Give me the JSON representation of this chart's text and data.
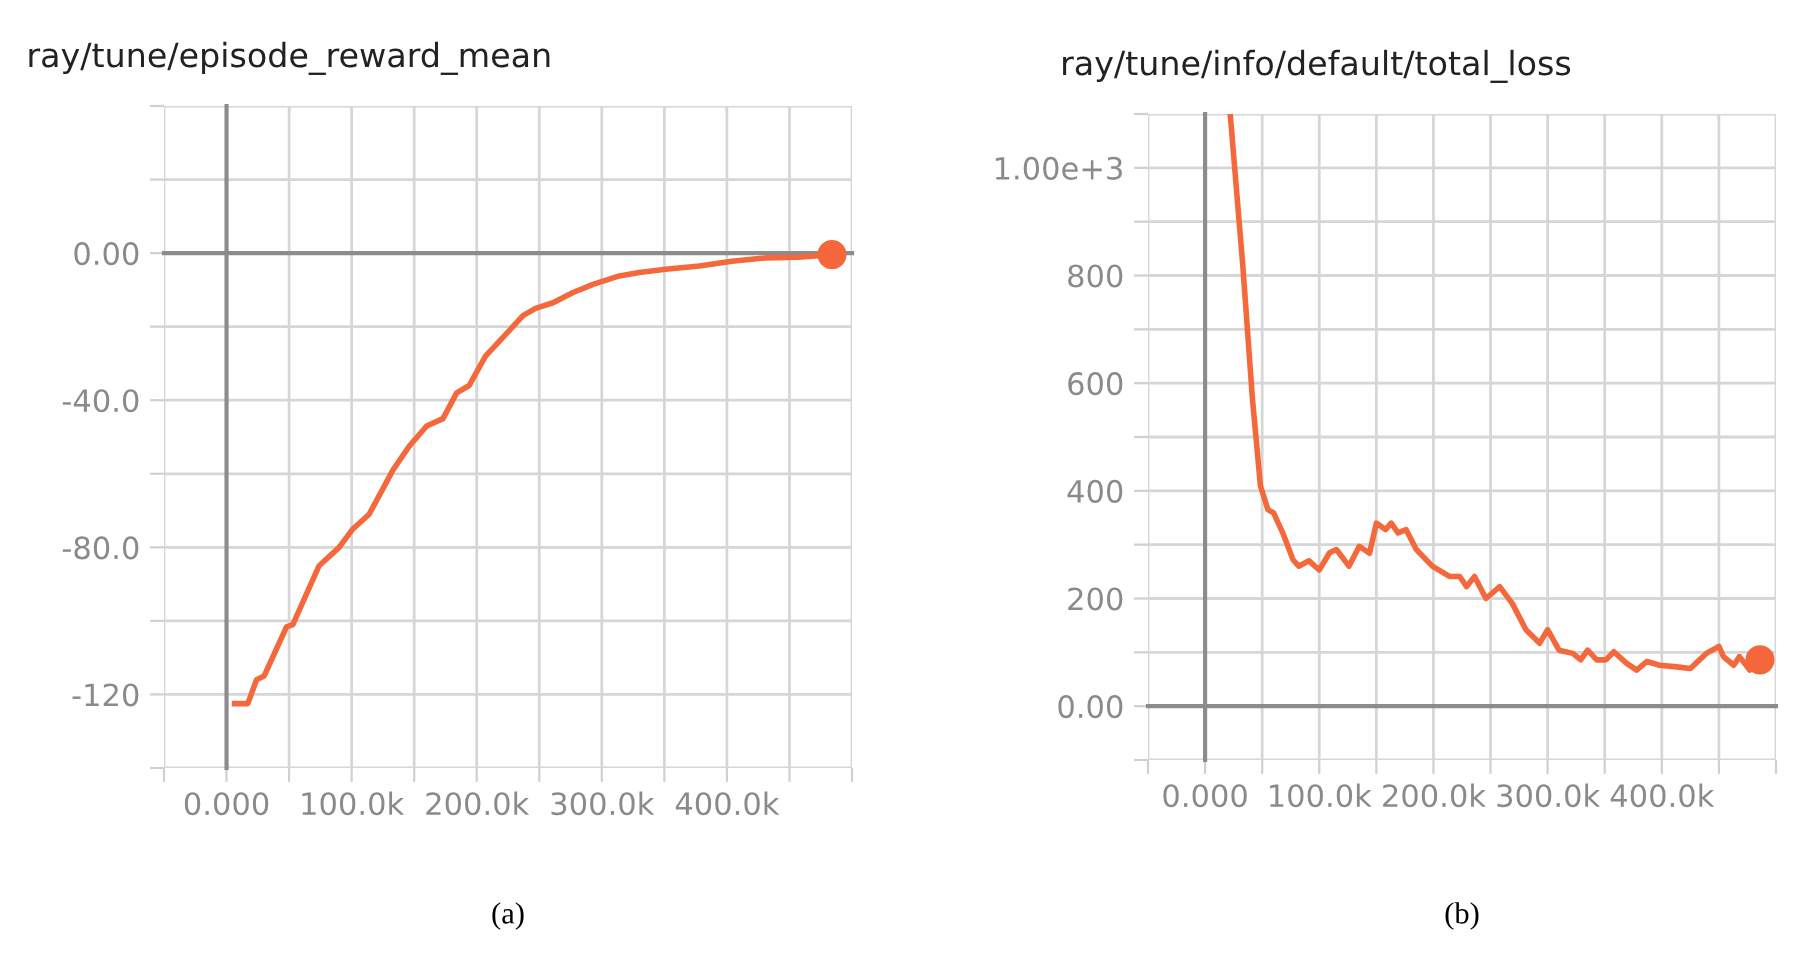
{
  "chart_data": [
    {
      "type": "line",
      "title": "ray/tune/episode_reward_mean",
      "annotations": [
        "(a)"
      ],
      "grid": true,
      "marker": "none",
      "line_style": "solid",
      "xlim": [
        -50000,
        500000
      ],
      "ylim": [
        -140,
        40
      ],
      "xticks": [
        {
          "value": -50000,
          "label": null
        },
        {
          "value": 0,
          "label": "0.000"
        },
        {
          "value": 50000,
          "label": null
        },
        {
          "value": 100000,
          "label": "100.0k"
        },
        {
          "value": 150000,
          "label": null
        },
        {
          "value": 200000,
          "label": "200.0k"
        },
        {
          "value": 250000,
          "label": null
        },
        {
          "value": 300000,
          "label": "300.0k"
        },
        {
          "value": 350000,
          "label": null
        },
        {
          "value": 400000,
          "label": "400.0k"
        },
        {
          "value": 450000,
          "label": null
        },
        {
          "value": 500000,
          "label": null
        }
      ],
      "yticks": [
        {
          "value": -140,
          "label": null
        },
        {
          "value": -120,
          "label": "-120"
        },
        {
          "value": -100,
          "label": null
        },
        {
          "value": -80,
          "label": "-80.0"
        },
        {
          "value": -60,
          "label": null
        },
        {
          "value": -40,
          "label": "-40.0"
        },
        {
          "value": -20,
          "label": null
        },
        {
          "value": 0,
          "label": "0.00"
        },
        {
          "value": 20,
          "label": null
        },
        {
          "value": 40,
          "label": null
        }
      ],
      "series": [
        {
          "color": "#f4683c",
          "x": [
            6400,
            17000,
            24000,
            30000,
            48000,
            53000,
            74000,
            90000,
            101000,
            114000,
            133000,
            146000,
            160000,
            173000,
            184000,
            194000,
            207000,
            218000,
            237000,
            247000,
            261000,
            277000,
            293000,
            314000,
            330000,
            351000,
            378000,
            404000,
            431000,
            457000,
            484000
          ],
          "values": [
            -122.5,
            -122.5,
            -116,
            -115,
            -101.6,
            -101,
            -85,
            -80,
            -75,
            -71,
            -59,
            -52.5,
            -47,
            -45,
            -38,
            -36,
            -28,
            -24,
            -17,
            -15,
            -13.5,
            -10.7,
            -8.5,
            -6.2,
            -5.3,
            -4.4,
            -3.5,
            -2.2,
            -1.3,
            -1.1,
            -0.4
          ]
        },
        {
          "type": "scatter",
          "marker": "circle",
          "color": "#f4683c",
          "x": [
            484000
          ],
          "values": [
            -0.4
          ]
        }
      ]
    },
    {
      "type": "line",
      "title": "ray/tune/info/default/total_loss",
      "annotations": [
        "(b)"
      ],
      "grid": true,
      "marker": "none",
      "line_style": "solid",
      "xlim": [
        -50000,
        500000
      ],
      "ylim": [
        -100,
        1100
      ],
      "xticks": [
        {
          "value": -50000,
          "label": null
        },
        {
          "value": 0,
          "label": "0.000"
        },
        {
          "value": 50000,
          "label": null
        },
        {
          "value": 100000,
          "label": "100.0k"
        },
        {
          "value": 150000,
          "label": null
        },
        {
          "value": 200000,
          "label": "200.0k"
        },
        {
          "value": 250000,
          "label": null
        },
        {
          "value": 300000,
          "label": "300.0k"
        },
        {
          "value": 350000,
          "label": null
        },
        {
          "value": 400000,
          "label": "400.0k"
        },
        {
          "value": 450000,
          "label": null
        },
        {
          "value": 500000,
          "label": null
        }
      ],
      "yticks": [
        {
          "value": -100,
          "label": null
        },
        {
          "value": 0,
          "label": "0.00"
        },
        {
          "value": 100,
          "label": null
        },
        {
          "value": 200,
          "label": "200"
        },
        {
          "value": 300,
          "label": null
        },
        {
          "value": 400,
          "label": "400"
        },
        {
          "value": 500,
          "label": null
        },
        {
          "value": 600,
          "label": "600"
        },
        {
          "value": 700,
          "label": null
        },
        {
          "value": 800,
          "label": "800"
        },
        {
          "value": 900,
          "label": null
        },
        {
          "value": 1000,
          "label": "1.00e+3"
        },
        {
          "value": 1100,
          "label": null
        }
      ],
      "series": [
        {
          "color": "#f4683c",
          "x": [
            22000,
            33000,
            41500,
            48500,
            55000,
            60000,
            68000,
            77000,
            82000,
            91000,
            100000,
            109000,
            115000,
            126000,
            135000,
            144000,
            150000,
            158000,
            163000,
            169000,
            176000,
            185000,
            199000,
            214000,
            223000,
            229000,
            236000,
            246000,
            258000,
            269000,
            281000,
            293000,
            300000,
            310000,
            322000,
            329000,
            335000,
            343000,
            351000,
            358000,
            369000,
            378000,
            387000,
            398000,
            413000,
            425000,
            433000,
            439000,
            450000,
            454000,
            463000,
            468000,
            477000,
            486000
          ],
          "values": [
            1100,
            819,
            570,
            409,
            365,
            359,
            322,
            272,
            260,
            270,
            253,
            285,
            291,
            260,
            297,
            284,
            340,
            328,
            340,
            322,
            328,
            291,
            260,
            241,
            241,
            222,
            241,
            200,
            222,
            191,
            142,
            117,
            142,
            104,
            98,
            86,
            104,
            86,
            86,
            101,
            80,
            67,
            83,
            76,
            73,
            70,
            86,
            98,
            111,
            92,
            76,
            92,
            67,
            86
          ]
        },
        {
          "type": "scatter",
          "marker": "circle",
          "color": "#f4683c",
          "x": [
            486000
          ],
          "values": [
            86
          ]
        }
      ]
    }
  ]
}
